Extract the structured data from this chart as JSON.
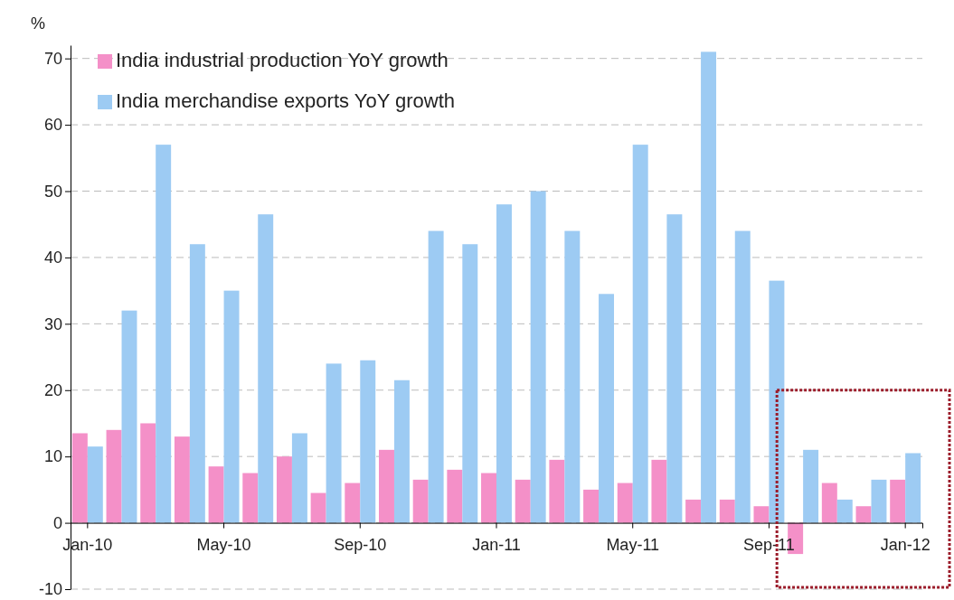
{
  "chart_data": {
    "type": "bar",
    "ylabel": "%",
    "categories": [
      "Jan-10",
      null,
      null,
      null,
      "May-10",
      null,
      null,
      null,
      "Sep-10",
      null,
      null,
      null,
      "Jan-11",
      null,
      null,
      null,
      "May-11",
      null,
      null,
      null,
      "Sep-11",
      null,
      null,
      null,
      "Jan-12"
    ],
    "series": [
      {
        "name": "India industrial production YoY growth",
        "color": "#f490c8",
        "values": [
          13.5,
          14,
          15,
          13,
          8.5,
          7.5,
          10,
          4.5,
          6,
          11,
          6.5,
          8,
          7.5,
          6.5,
          9.5,
          5,
          6,
          9.5,
          3.5,
          3.5,
          2.5,
          -4.7,
          6,
          2.5,
          6.5
        ]
      },
      {
        "name": "India merchandise exports YoY growth",
        "color": "#9dcbf3",
        "values": [
          11.5,
          32,
          57,
          42,
          35,
          46.5,
          13.5,
          24,
          24.5,
          21.5,
          44,
          42,
          48,
          50,
          44,
          34.5,
          57,
          46.5,
          71,
          44,
          36.5,
          11,
          3.5,
          6.5,
          10.5
        ]
      }
    ],
    "ylim": [
      -10,
      72
    ],
    "yticks": [
      -10,
      0,
      10,
      20,
      30,
      40,
      50,
      60,
      70
    ],
    "grid": "y",
    "legend": "top left"
  }
}
